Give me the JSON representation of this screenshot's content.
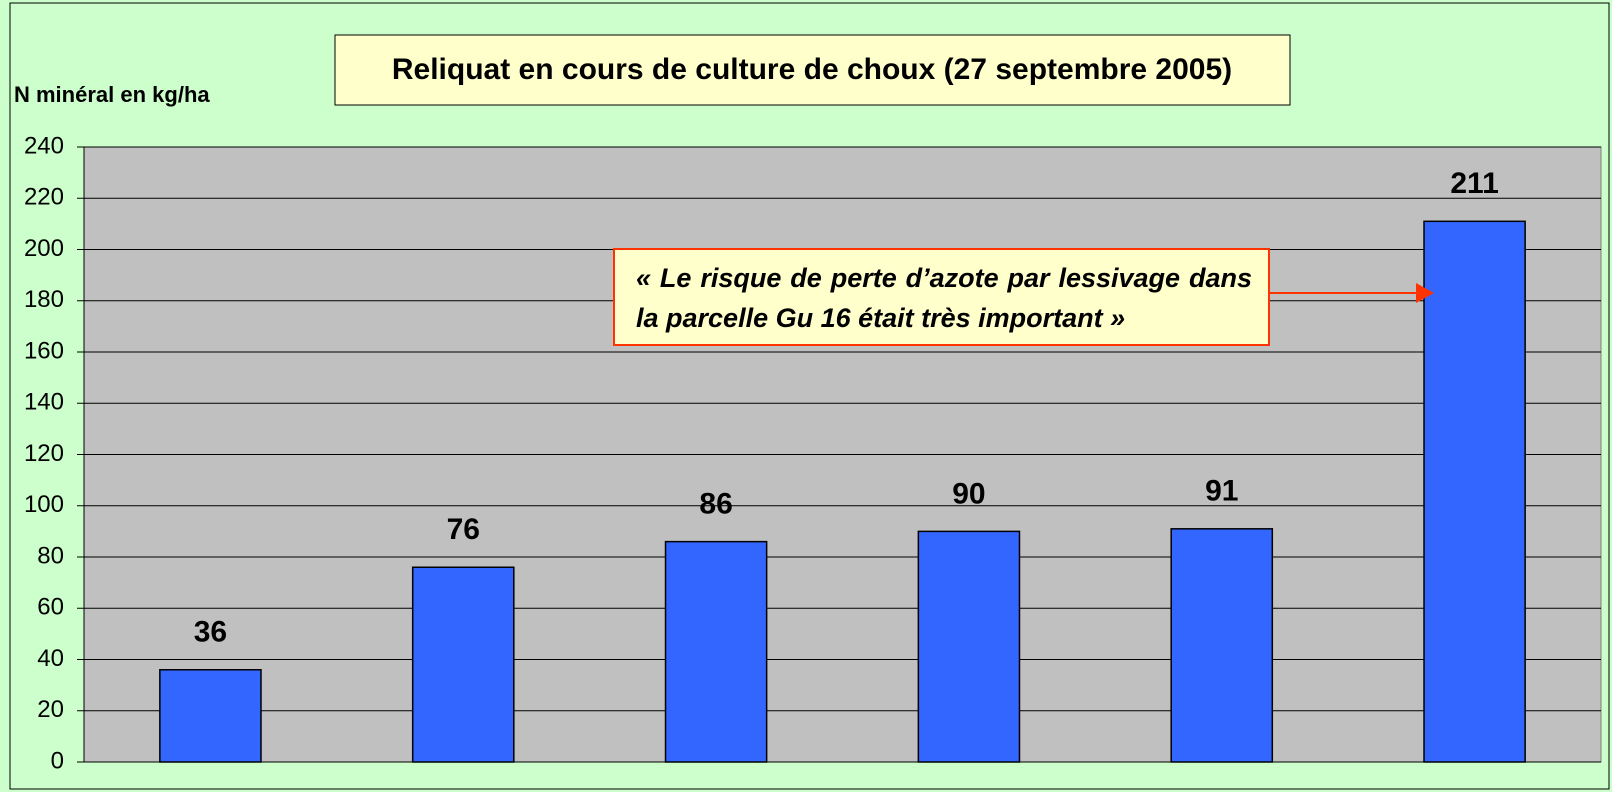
{
  "chart_data": {
    "type": "bar",
    "title": "Reliquat en cours de culture de choux (27 septembre 2005)",
    "y_axis_label": "N minéral en kg/ha",
    "annotation": "« Le risque de perte d’azote par lessivage dans la parcelle Gu 16 était très important »",
    "categories": [
      null,
      null,
      null,
      null,
      null,
      null
    ],
    "values": [
      36,
      76,
      86,
      90,
      91,
      211
    ],
    "color": "#3366ff",
    "ylim": [
      0,
      240
    ],
    "yticks": [
      0,
      20,
      40,
      60,
      80,
      100,
      120,
      140,
      160,
      180,
      200,
      220,
      240
    ],
    "grid": true
  }
}
